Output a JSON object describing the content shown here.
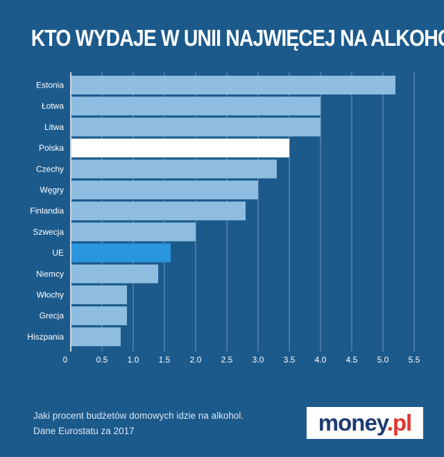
{
  "chart_data": {
    "type": "bar",
    "orientation": "horizontal",
    "title": "KTO WYDAJE W UNII NAJWIĘCEJ NA ALKOHOL",
    "categories": [
      "Estonia",
      "Łotwa",
      "Litwa",
      "Polska",
      "Czechy",
      "Węgry",
      "Finlandia",
      "Szwecja",
      "UE",
      "Niemcy",
      "Włochy",
      "Grecja",
      "Hiszpania"
    ],
    "values": [
      5.2,
      4.0,
      4.0,
      3.5,
      3.3,
      3.0,
      2.8,
      2.0,
      1.6,
      1.4,
      0.9,
      0.9,
      0.8
    ],
    "xlim": [
      0,
      5.5
    ],
    "xticks": [
      0,
      0.5,
      1.0,
      1.5,
      2.0,
      2.5,
      3.0,
      3.5,
      4.0,
      4.5,
      5.0,
      5.5
    ],
    "xtick_labels": [
      "0",
      "0.5",
      "1.0",
      "1.5",
      "2.0",
      "2.5",
      "3.0",
      "3.5",
      "4.0",
      "4.5",
      "5.0",
      "5.5"
    ],
    "xlabel": "",
    "ylabel": "",
    "grid": "vertical",
    "colors": {
      "default": "#8ebde0",
      "Polska": "#ffffff",
      "UE": "#2b96e0",
      "background": "#1c5a8c",
      "grid": "#6f9cc2"
    }
  },
  "footer": {
    "caption_line1": "Jaki procent budżetów domowych idzie na alkohol.",
    "caption_line2": "Dane Eurostatu za 2017"
  },
  "logo": {
    "main": "money",
    "suffix": ".pl"
  }
}
